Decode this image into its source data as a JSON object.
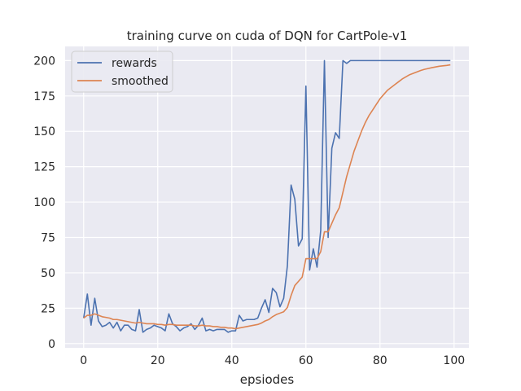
{
  "chart_data": {
    "type": "line",
    "title": "training curve on cuda of DQN for CartPole-v1",
    "xlabel": "epsiodes",
    "ylabel": "",
    "xlim": [
      -5,
      104
    ],
    "ylim": [
      -3,
      210
    ],
    "xticks": [
      0,
      20,
      40,
      60,
      80,
      100
    ],
    "yticks": [
      0,
      25,
      50,
      75,
      100,
      125,
      150,
      175,
      200
    ],
    "grid": true,
    "legend_position": "top-left",
    "series": [
      {
        "name": "rewards",
        "color": "#4c72b0",
        "x": [
          0,
          1,
          2,
          3,
          4,
          5,
          6,
          7,
          8,
          9,
          10,
          11,
          12,
          13,
          14,
          15,
          16,
          17,
          18,
          19,
          20,
          21,
          22,
          23,
          24,
          25,
          26,
          27,
          28,
          29,
          30,
          31,
          32,
          33,
          34,
          35,
          36,
          37,
          38,
          39,
          40,
          41,
          42,
          43,
          44,
          45,
          46,
          47,
          48,
          49,
          50,
          51,
          52,
          53,
          54,
          55,
          56,
          57,
          58,
          59,
          60,
          61,
          62,
          63,
          64,
          65,
          66,
          67,
          68,
          69,
          70,
          71,
          72,
          73,
          74,
          75,
          76,
          77,
          78,
          79,
          80,
          81,
          82,
          83,
          84,
          85,
          86,
          87,
          88,
          89,
          90,
          91,
          92,
          93,
          94,
          95,
          96,
          97,
          98,
          99
        ],
        "y": [
          18,
          35,
          13,
          32,
          16,
          12,
          13,
          15,
          11,
          15,
          9,
          13,
          13,
          10,
          9,
          24,
          8,
          10,
          11,
          13,
          12,
          11,
          9,
          21,
          14,
          12,
          9,
          11,
          12,
          14,
          10,
          13,
          18,
          9,
          10,
          9,
          10,
          10,
          10,
          8,
          9,
          9,
          20,
          16,
          17,
          17,
          17,
          18,
          25,
          31,
          22,
          39,
          36,
          26,
          32,
          55,
          112,
          102,
          69,
          74,
          182,
          52,
          67,
          54,
          80,
          200,
          75,
          138,
          149,
          145,
          200,
          198,
          200,
          200,
          200,
          200,
          200,
          200,
          200,
          200,
          200,
          200,
          200,
          200,
          200,
          200,
          200,
          200,
          200,
          200,
          200,
          200,
          200,
          200,
          200,
          200,
          200,
          200,
          200,
          200
        ]
      },
      {
        "name": "smoothed",
        "color": "#dd8452",
        "x": [
          0,
          1,
          2,
          3,
          4,
          5,
          6,
          7,
          8,
          9,
          10,
          11,
          12,
          13,
          14,
          15,
          16,
          17,
          18,
          19,
          20,
          21,
          22,
          23,
          24,
          25,
          26,
          27,
          28,
          29,
          30,
          31,
          32,
          33,
          34,
          35,
          36,
          37,
          38,
          39,
          40,
          41,
          42,
          43,
          44,
          45,
          46,
          47,
          48,
          49,
          50,
          51,
          52,
          53,
          54,
          55,
          56,
          57,
          58,
          59,
          60,
          61,
          62,
          63,
          64,
          65,
          66,
          67,
          68,
          69,
          70,
          71,
          72,
          73,
          74,
          75,
          76,
          77,
          78,
          79,
          80,
          81,
          82,
          83,
          84,
          85,
          86,
          87,
          88,
          89,
          90,
          91,
          92,
          93,
          94,
          95,
          96,
          97,
          98,
          99
        ],
        "y": [
          18,
          20,
          20,
          21,
          20,
          19,
          18.5,
          18,
          17,
          17,
          16.5,
          16,
          15.5,
          15,
          14.5,
          15,
          14.5,
          14,
          14,
          14,
          13.5,
          13.5,
          13,
          13.5,
          13.5,
          13,
          13,
          13,
          13,
          13,
          12.5,
          12.5,
          13,
          12.5,
          12.5,
          12,
          12,
          11.5,
          11.5,
          11,
          11,
          10.5,
          11,
          11.5,
          12,
          12.5,
          13,
          13.5,
          14.5,
          16,
          17,
          19,
          20.5,
          21.5,
          22.5,
          25.5,
          34,
          41,
          44,
          47,
          60,
          60,
          60,
          60,
          65,
          79,
          79,
          85,
          91,
          96,
          107,
          118,
          127,
          136,
          143,
          150,
          156,
          161,
          165,
          169,
          173,
          176,
          179,
          181,
          183,
          185,
          187,
          188.5,
          190,
          191,
          192,
          193,
          193.8,
          194.4,
          195,
          195.5,
          196,
          196.3,
          196.6,
          197
        ]
      }
    ]
  }
}
